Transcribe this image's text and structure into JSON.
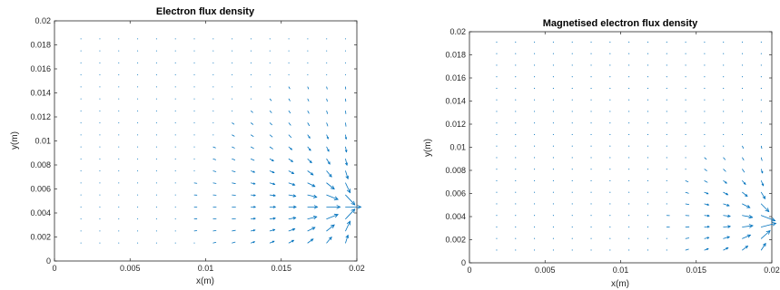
{
  "figure": {
    "background": "#ffffff",
    "axis_color": "#262626"
  },
  "chart_data": [
    {
      "type": "quiver",
      "title": "Electron flux density",
      "xlabel": "x(m)",
      "ylabel": "y(m)",
      "xlim": [
        0,
        0.02
      ],
      "ylim": [
        0,
        0.02
      ],
      "xticks": [
        0,
        0.005,
        0.01,
        0.015,
        0.02
      ],
      "xtick_labels": [
        "0",
        "0.005",
        "0.01",
        "0.015",
        "0.02"
      ],
      "yticks": [
        0,
        0.002,
        0.004,
        0.006,
        0.008,
        0.01,
        0.012,
        0.014,
        0.016,
        0.018,
        0.02
      ],
      "ytick_labels": [
        "0",
        "0.002",
        "0.004",
        "0.006",
        "0.008",
        "0.01",
        "0.012",
        "0.014",
        "0.016",
        "0.018",
        "0.02"
      ],
      "grid": false,
      "color": "#0072bd",
      "sink_point": {
        "x": 0.02,
        "y": 0.0045
      },
      "arrow_grid": {
        "x_start": 0.00175,
        "x_step": 0.00125,
        "x_count": 15,
        "y_start": 0.0015,
        "y_step": 0.001,
        "y_count": 18
      },
      "arrow_scale": 0.0009,
      "arrow_extent": 0.011,
      "decay": 0.0032
    },
    {
      "type": "quiver",
      "title": "Magnetised electron flux density",
      "xlabel": "x(m)",
      "ylabel": "y(m)",
      "xlim": [
        0,
        0.02
      ],
      "ylim": [
        0,
        0.02
      ],
      "xticks": [
        0,
        0.005,
        0.01,
        0.015,
        0.02
      ],
      "xtick_labels": [
        "0",
        "0.005",
        "0.01",
        "0.015",
        "0.02"
      ],
      "yticks": [
        0,
        0.002,
        0.004,
        0.006,
        0.008,
        0.01,
        0.012,
        0.014,
        0.016,
        0.018,
        0.02
      ],
      "ytick_labels": [
        "0",
        "0.002",
        "0.004",
        "0.006",
        "0.008",
        "0.01",
        "0.012",
        "0.014",
        "0.016",
        "0.018",
        "0.02"
      ],
      "grid": false,
      "color": "#0072bd",
      "sink_point": {
        "x": 0.0205,
        "y": 0.0035
      },
      "arrow_grid": {
        "x_start": 0.0018,
        "x_step": 0.00125,
        "x_count": 15,
        "y_start": 0.0011,
        "y_step": 0.001,
        "y_count": 19
      },
      "arrow_scale": 0.0009,
      "arrow_extent": 0.0075,
      "decay": 0.0022
    }
  ]
}
